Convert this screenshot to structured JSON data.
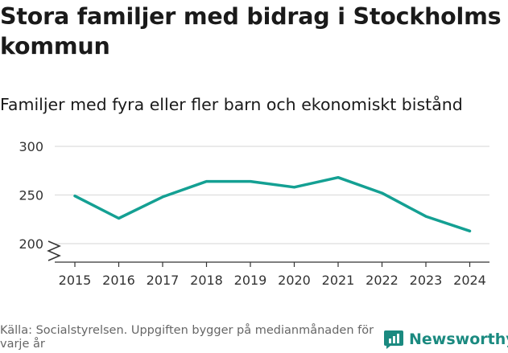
{
  "title": "Stora familjer med bidrag i Stockholms kommun",
  "subtitle": "Familjer med fyra eller fler barn och ekonomiskt bistånd",
  "footer": "Källa: Socialstyrelsen. Uppgiften bygger på medianmånaden för varje år",
  "brand": "Newsworthy",
  "colors": {
    "line": "#14a093",
    "grid": "#dddddd",
    "axis": "#333333",
    "brand": "#1b8a80"
  },
  "chart_data": {
    "type": "line",
    "title": "Familjer med fyra eller fler barn och ekonomiskt bistånd",
    "x": [
      "2015",
      "2016",
      "2017",
      "2018",
      "2019",
      "2020",
      "2021",
      "2022",
      "2023",
      "2024"
    ],
    "series": [
      {
        "name": "Familjer",
        "values": [
          249,
          226,
          248,
          264,
          264,
          258,
          268,
          252,
          228,
          213
        ]
      }
    ],
    "yticks": [
      200,
      250,
      300
    ],
    "ytick_labels": [
      "200",
      "250",
      "300"
    ],
    "ylim": [
      190,
      305
    ],
    "axis_break": true,
    "grid": true,
    "xlabel": "",
    "ylabel": ""
  }
}
